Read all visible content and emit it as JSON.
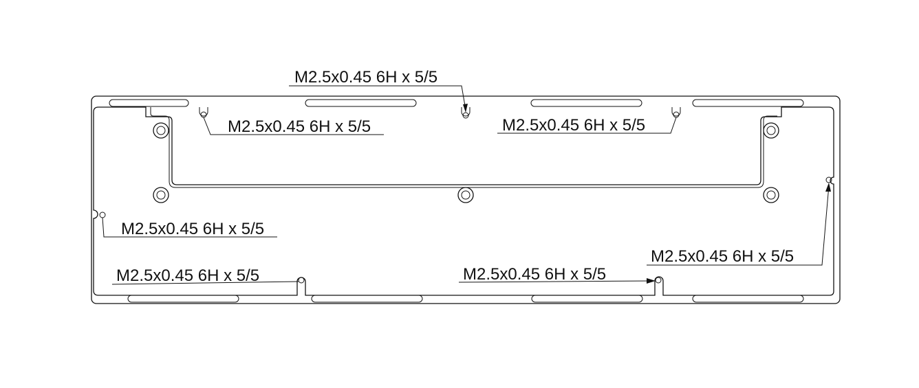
{
  "callouts": [
    {
      "id": "callout-top-center",
      "text": "M2.5x0.45 6H x 5/5"
    },
    {
      "id": "callout-top-left",
      "text": "M2.5x0.45 6H x 5/5"
    },
    {
      "id": "callout-top-right",
      "text": "M2.5x0.45 6H x 5/5"
    },
    {
      "id": "callout-left-edge",
      "text": "M2.5x0.45 6H x 5/5"
    },
    {
      "id": "callout-bottom-left",
      "text": "M2.5x0.45 6H x 5/5"
    },
    {
      "id": "callout-bottom-center",
      "text": "M2.5x0.45 6H x 5/5"
    },
    {
      "id": "callout-right-edge",
      "text": "M2.5x0.45 6H x 5/5"
    }
  ]
}
